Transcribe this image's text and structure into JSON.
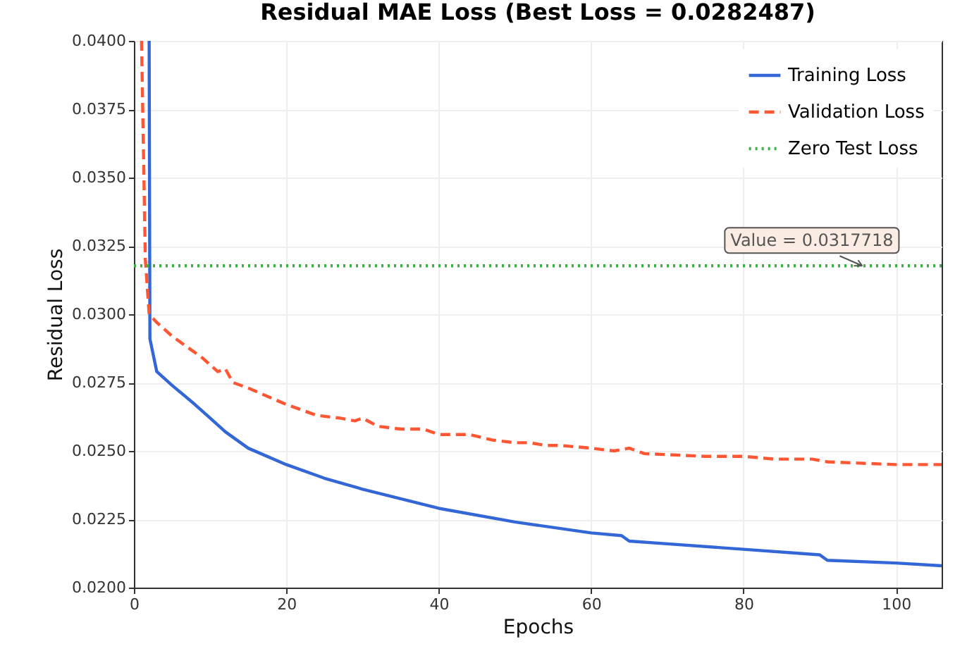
{
  "chart_data": {
    "type": "line",
    "title": "Residual MAE Loss (Best Loss = 0.0282487)",
    "xlabel": "Epochs",
    "ylabel": "Residual Loss",
    "series": [
      {
        "name": "Training Loss",
        "color": "#3366d6",
        "line_style": "solid",
        "x": [
          2,
          2.1,
          3,
          5,
          8,
          10,
          12,
          15,
          20,
          25,
          30,
          40,
          50,
          60,
          64,
          65,
          70,
          80,
          90,
          91,
          100,
          106
        ],
        "values": [
          0.04,
          0.0291,
          0.0279,
          0.0274,
          0.0267,
          0.0262,
          0.0257,
          0.0251,
          0.0245,
          0.024,
          0.0236,
          0.0229,
          0.0224,
          0.022,
          0.0219,
          0.0217,
          0.0216,
          0.0214,
          0.0212,
          0.021,
          0.0209,
          0.0208
        ]
      },
      {
        "name": "Validation Loss",
        "color": "#ff5733",
        "line_style": "dashed",
        "x": [
          1,
          1.5,
          2,
          3,
          5,
          7,
          9,
          11,
          12,
          13,
          15,
          20,
          22,
          24,
          27,
          29,
          30,
          32,
          35,
          38,
          40,
          44,
          47,
          50,
          52,
          54,
          56,
          60,
          63,
          65,
          67,
          75,
          80,
          84,
          89,
          91,
          100,
          106
        ],
        "values": [
          0.04,
          0.032,
          0.03,
          0.0297,
          0.0292,
          0.0288,
          0.0284,
          0.0279,
          0.028,
          0.0275,
          0.0273,
          0.0267,
          0.0265,
          0.0263,
          0.0262,
          0.0261,
          0.0262,
          0.0259,
          0.0258,
          0.0258,
          0.0256,
          0.0256,
          0.0254,
          0.0253,
          0.0253,
          0.0252,
          0.0252,
          0.0251,
          0.025,
          0.0251,
          0.0249,
          0.0248,
          0.0248,
          0.0247,
          0.0247,
          0.0246,
          0.0245,
          0.0245
        ]
      },
      {
        "name": "Zero Test Loss",
        "color": "#3cb043",
        "line_style": "dotted",
        "x": [
          0,
          106
        ],
        "values": [
          0.0317718,
          0.0317718
        ]
      }
    ],
    "annotations": [
      {
        "text": "Value = 0.0317718",
        "x": 96,
        "y": 0.0317718
      }
    ],
    "xlim": [
      0,
      106
    ],
    "xticks": [
      0,
      20,
      40,
      60,
      80,
      100
    ],
    "ylim": [
      0.02,
      0.04
    ],
    "yticks": [
      {
        "value": 0.02,
        "label": "0.0200"
      },
      {
        "value": 0.0225,
        "label": "0.0225"
      },
      {
        "value": 0.025,
        "label": "0.0250"
      },
      {
        "value": 0.0275,
        "label": "0.0275"
      },
      {
        "value": 0.03,
        "label": "0.0300"
      },
      {
        "value": 0.0325,
        "label": "0.0325"
      },
      {
        "value": 0.035,
        "label": "0.0350"
      },
      {
        "value": 0.0375,
        "label": "0.0375"
      },
      {
        "value": 0.04,
        "label": "0.0400"
      }
    ],
    "grid": true,
    "legend": "top right"
  }
}
